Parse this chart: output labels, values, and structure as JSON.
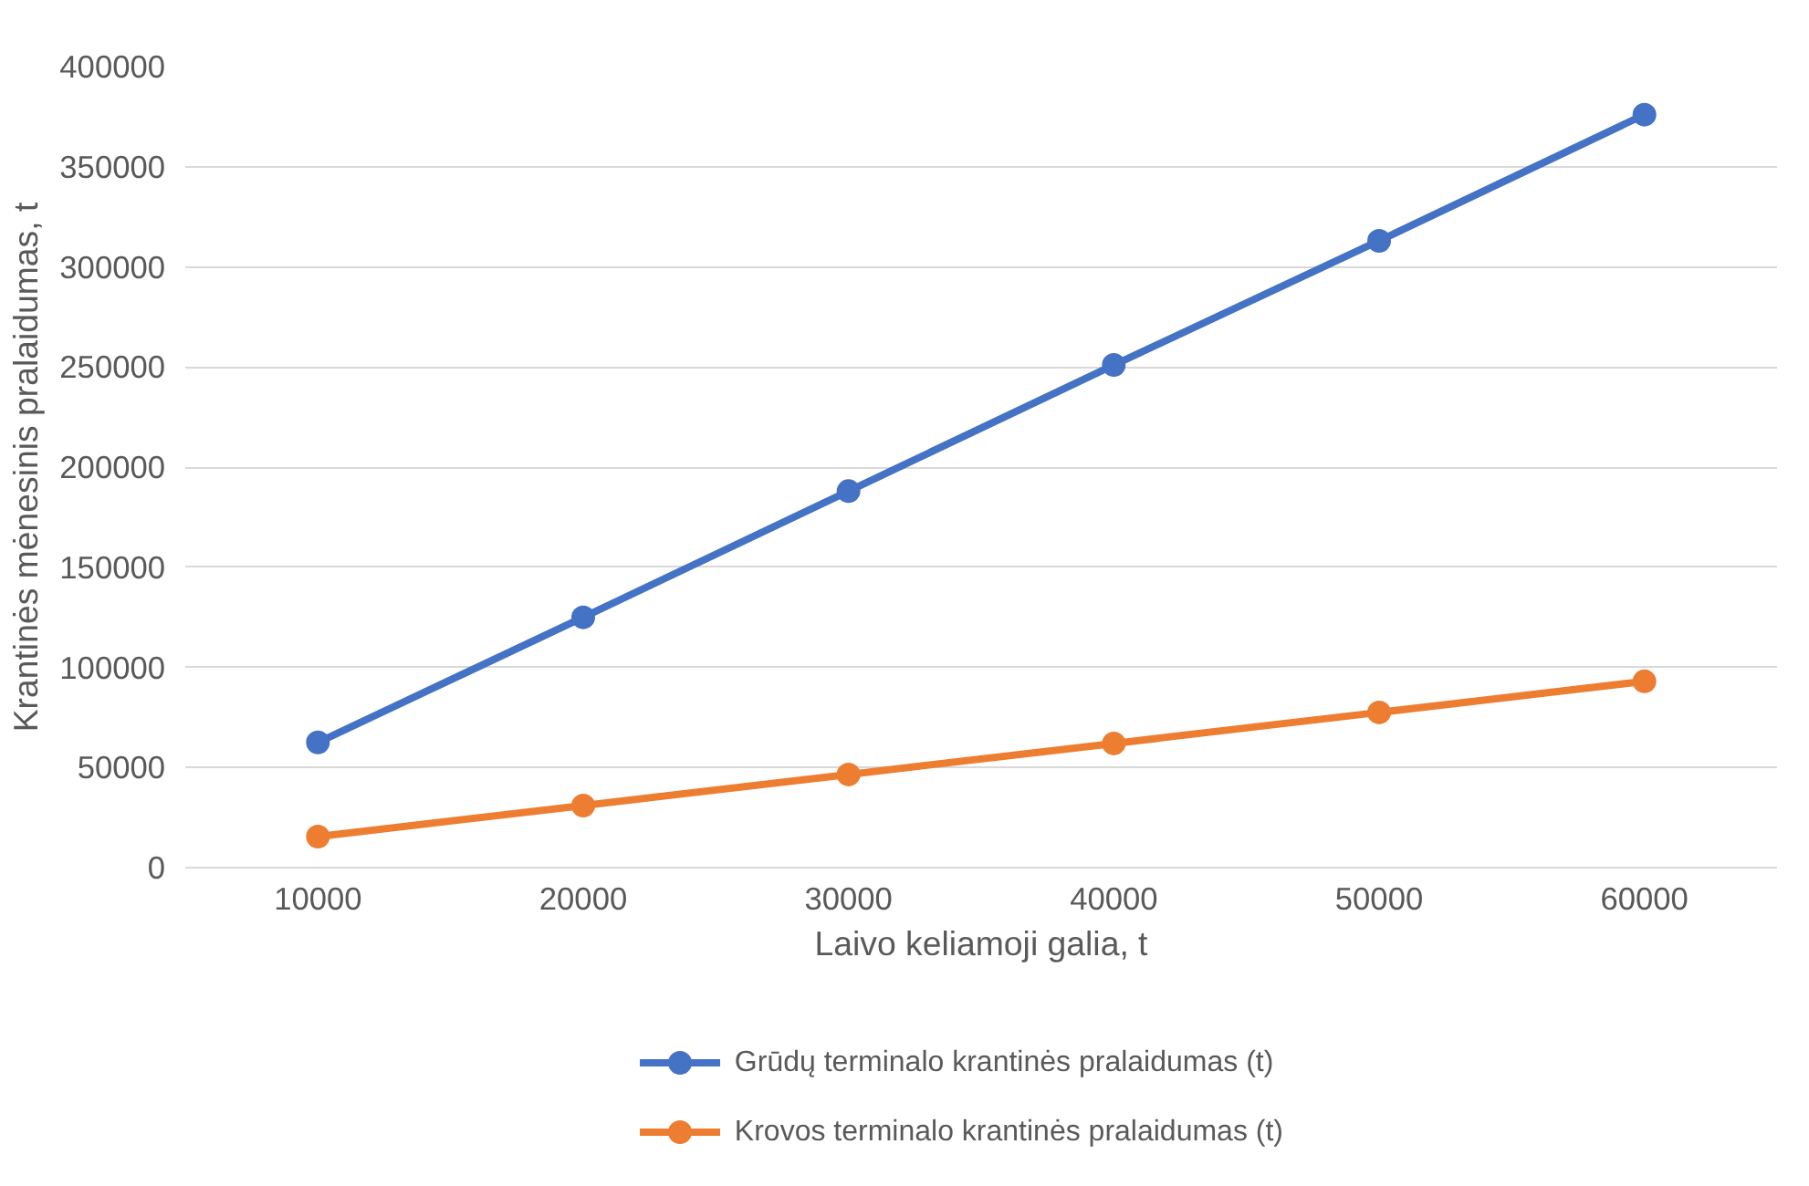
{
  "chart_data": {
    "type": "line",
    "xlabel": "Laivo keliamoji galia, t",
    "ylabel": "Krantinės mėnesinis pralaidumas, t",
    "categories": [
      "10000",
      "20000",
      "30000",
      "40000",
      "50000",
      "60000"
    ],
    "series": [
      {
        "name": "Grūdų terminalo krantinės pralaidumas (t)",
        "color": "#4472c4",
        "values": [
          62500,
          125000,
          188000,
          251000,
          313000,
          376000
        ]
      },
      {
        "name": "Krovos terminalo krantinės pralaidumas (t)",
        "color": "#ed7d31",
        "values": [
          15500,
          31000,
          46500,
          62000,
          77500,
          93000
        ]
      }
    ],
    "ylim": [
      0,
      400000
    ],
    "yticks": [
      0,
      50000,
      100000,
      150000,
      200000,
      250000,
      300000,
      350000,
      400000
    ],
    "grid": "y",
    "legend": "bottom",
    "marker": "circle",
    "line_style": "solid"
  }
}
